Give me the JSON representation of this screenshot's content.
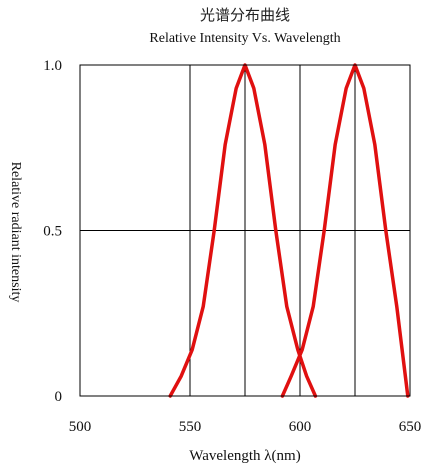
{
  "chart_data": {
    "type": "line",
    "title": "光谱分布曲线",
    "subtitle": "Relative Intensity Vs. Wavelength",
    "xlabel": "Wavelength λ(nm)",
    "ylabel": "Relative radiant intensity",
    "xlim": [
      500,
      650
    ],
    "ylim": [
      0,
      1
    ],
    "x_ticks": [
      "500",
      "550",
      "600",
      "650"
    ],
    "y_ticks": [
      "0",
      "0.5",
      "1.0"
    ],
    "x_tick_values": [
      500,
      550,
      600,
      650
    ],
    "y_tick_values": [
      0,
      0.5,
      1.0
    ],
    "x_gridlines": [
      550,
      575,
      600,
      625
    ],
    "y_gridlines": [
      0.5
    ],
    "grid": true,
    "legend": "none",
    "series": [
      {
        "color": "#e01010",
        "x": [
          541,
          546,
          551,
          556,
          561,
          566,
          571,
          575,
          579,
          584,
          589,
          594,
          599,
          603,
          607
        ],
        "y": [
          0,
          0.06,
          0.14,
          0.27,
          0.5,
          0.76,
          0.93,
          1.0,
          0.93,
          0.76,
          0.5,
          0.27,
          0.14,
          0.06,
          0
        ]
      },
      {
        "color": "#e01010",
        "x": [
          592,
          596,
          601,
          606,
          611,
          616,
          621,
          625,
          629,
          634,
          639,
          644,
          649
        ],
        "y": [
          0,
          0.06,
          0.14,
          0.27,
          0.5,
          0.76,
          0.93,
          1.0,
          0.93,
          0.76,
          0.5,
          0.27,
          0
        ]
      }
    ]
  }
}
